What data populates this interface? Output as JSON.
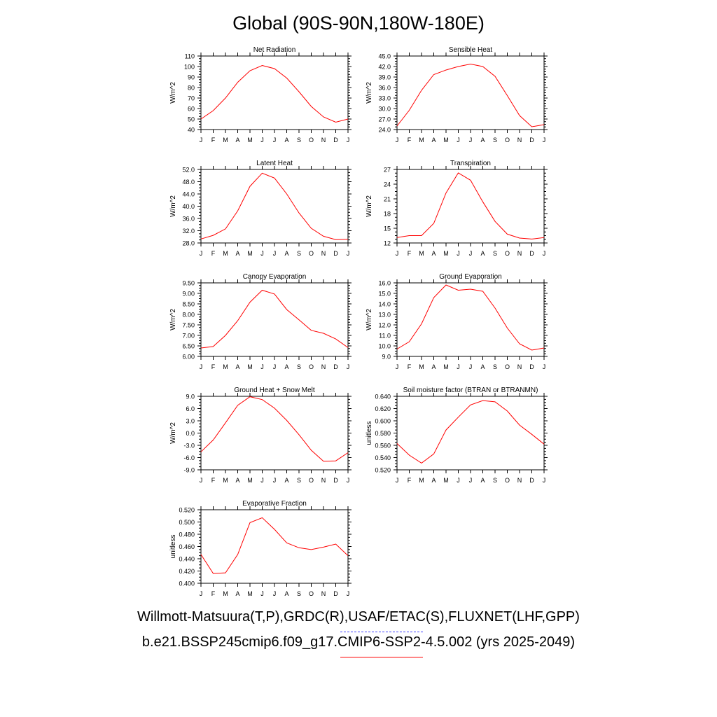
{
  "title": "Global (90S-90N,180W-180E)",
  "legend": {
    "obs_label": "Willmott-Matsuura(T,P),GRDC(R),USAF/ETAC(S),FLUXNET(LHF,GPP)",
    "obs_color": "#4040ff",
    "model_label": "b.e21.BSSP245cmip6.f09_g17.CMIP6-SSP2-4.5.002 (yrs 2025-2049)",
    "model_color": "#ff0000"
  },
  "chart_data": [
    {
      "type": "line",
      "title": "Net Radiation",
      "ylabel": "W/m^2",
      "x": [
        "J",
        "F",
        "M",
        "A",
        "M",
        "J",
        "J",
        "A",
        "S",
        "O",
        "N",
        "D",
        "J"
      ],
      "ylim": [
        40,
        110
      ],
      "yticks": [
        "40",
        "50",
        "60",
        "70",
        "80",
        "90",
        "100",
        "110"
      ],
      "series": [
        {
          "color": "#ff0000",
          "values": [
            50,
            58,
            70,
            85,
            96,
            101,
            98,
            89,
            76,
            62,
            52,
            47,
            50
          ]
        }
      ]
    },
    {
      "type": "line",
      "title": "Sensible Heat",
      "ylabel": "W/m^2",
      "x": [
        "J",
        "F",
        "M",
        "A",
        "M",
        "J",
        "J",
        "A",
        "S",
        "O",
        "N",
        "D",
        "J"
      ],
      "ylim": [
        24,
        45
      ],
      "yticks": [
        "24.0",
        "27.0",
        "30.0",
        "33.0",
        "36.0",
        "39.0",
        "42.0",
        "45.0"
      ],
      "series": [
        {
          "color": "#ff0000",
          "values": [
            25,
            29.5,
            35.2,
            39.7,
            41,
            42,
            42.7,
            42,
            39.2,
            33.7,
            28,
            24.8,
            25.4
          ]
        }
      ]
    },
    {
      "type": "line",
      "title": "Latent Heat",
      "ylabel": "W/m^2",
      "x": [
        "J",
        "F",
        "M",
        "A",
        "M",
        "J",
        "J",
        "A",
        "S",
        "O",
        "N",
        "D",
        "J"
      ],
      "ylim": [
        28,
        52
      ],
      "yticks": [
        "28.0",
        "32.0",
        "36.0",
        "40.0",
        "44.0",
        "48.0",
        "52.0"
      ],
      "series": [
        {
          "color": "#ff0000",
          "values": [
            29.3,
            30.5,
            32.6,
            38.5,
            46.5,
            50.8,
            49.2,
            44,
            37.8,
            32.8,
            30.2,
            29.1,
            29.2
          ]
        }
      ]
    },
    {
      "type": "line",
      "title": "Transpiration",
      "ylabel": "W/m^2",
      "x": [
        "J",
        "F",
        "M",
        "A",
        "M",
        "J",
        "J",
        "A",
        "S",
        "O",
        "N",
        "D",
        "J"
      ],
      "ylim": [
        12,
        27
      ],
      "yticks": [
        "12",
        "15",
        "18",
        "21",
        "24",
        "27"
      ],
      "series": [
        {
          "color": "#ff0000",
          "values": [
            13.1,
            13.5,
            13.5,
            16,
            22.2,
            26.3,
            24.8,
            20.4,
            16.4,
            13.8,
            13,
            12.8,
            13.1
          ]
        }
      ]
    },
    {
      "type": "line",
      "title": "Canopy Evaporation",
      "ylabel": "W/m^2",
      "x": [
        "J",
        "F",
        "M",
        "A",
        "M",
        "J",
        "J",
        "A",
        "S",
        "O",
        "N",
        "D",
        "J"
      ],
      "ylim": [
        6,
        9.5
      ],
      "yticks": [
        "6.00",
        "6.50",
        "7.00",
        "7.50",
        "8.00",
        "8.50",
        "9.00",
        "9.50"
      ],
      "series": [
        {
          "color": "#ff0000",
          "values": [
            6.4,
            6.47,
            7,
            7.7,
            8.58,
            9.15,
            8.97,
            8.23,
            7.74,
            7.24,
            7.1,
            6.83,
            6.42
          ]
        }
      ]
    },
    {
      "type": "line",
      "title": "Ground Evaporation",
      "ylabel": "W/m^2",
      "x": [
        "J",
        "F",
        "M",
        "A",
        "M",
        "J",
        "J",
        "A",
        "S",
        "O",
        "N",
        "D",
        "J"
      ],
      "ylim": [
        9,
        16
      ],
      "yticks": [
        "9.0",
        "10.0",
        "11.0",
        "12.0",
        "13.0",
        "14.0",
        "15.0",
        "16.0"
      ],
      "series": [
        {
          "color": "#ff0000",
          "values": [
            9.7,
            10.4,
            12.1,
            14.6,
            15.8,
            15.3,
            15.4,
            15.2,
            13.6,
            11.7,
            10.2,
            9.6,
            9.8
          ]
        }
      ]
    },
    {
      "type": "line",
      "title": "Ground Heat + Snow Melt",
      "ylabel": "W/m^2",
      "x": [
        "J",
        "F",
        "M",
        "A",
        "M",
        "J",
        "J",
        "A",
        "S",
        "O",
        "N",
        "D",
        "J"
      ],
      "ylim": [
        -9,
        9
      ],
      "yticks": [
        "-9.0",
        "-6.0",
        "-3.0",
        "0.0",
        "3.0",
        "6.0",
        "9.0"
      ],
      "series": [
        {
          "color": "#ff0000",
          "values": [
            -4.6,
            -1.7,
            2.5,
            6.8,
            8.9,
            8.2,
            6.1,
            3.1,
            -0.4,
            -4.2,
            -6.9,
            -6.8,
            -4.8
          ]
        }
      ]
    },
    {
      "type": "line",
      "title": "Soil moisture factor (BTRAN or BTRANMN)",
      "ylabel": "unitless",
      "x": [
        "J",
        "F",
        "M",
        "A",
        "M",
        "J",
        "J",
        "A",
        "S",
        "O",
        "N",
        "D",
        "J"
      ],
      "ylim": [
        0.52,
        0.64
      ],
      "yticks": [
        "0.520",
        "0.540",
        "0.560",
        "0.580",
        "0.600",
        "0.620",
        "0.640"
      ],
      "series": [
        {
          "color": "#ff0000",
          "values": [
            0.563,
            0.544,
            0.531,
            0.546,
            0.585,
            0.606,
            0.626,
            0.633,
            0.631,
            0.616,
            0.593,
            0.578,
            0.562
          ]
        }
      ]
    },
    {
      "type": "line",
      "title": "Evaporative Fraction",
      "ylabel": "unitless",
      "x": [
        "J",
        "F",
        "M",
        "A",
        "M",
        "J",
        "J",
        "A",
        "S",
        "O",
        "N",
        "D",
        "J"
      ],
      "ylim": [
        0.4,
        0.52
      ],
      "yticks": [
        "0.400",
        "0.420",
        "0.440",
        "0.460",
        "0.480",
        "0.500",
        "0.520"
      ],
      "series": [
        {
          "color": "#ff0000",
          "values": [
            0.447,
            0.416,
            0.417,
            0.447,
            0.499,
            0.507,
            0.488,
            0.466,
            0.458,
            0.455,
            0.459,
            0.464,
            0.445
          ]
        }
      ]
    }
  ]
}
